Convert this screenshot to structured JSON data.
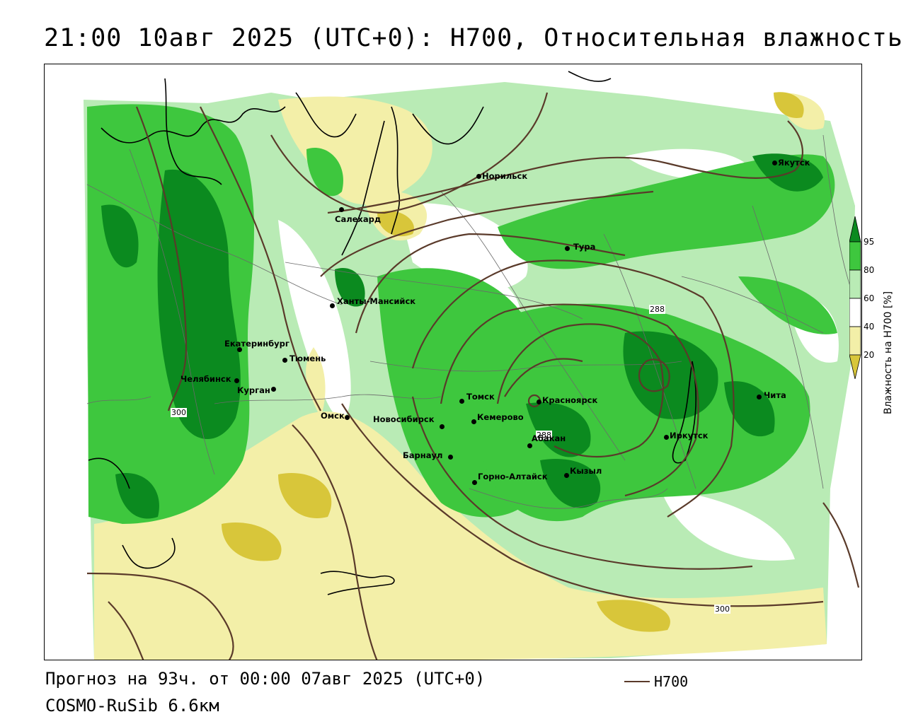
{
  "title": "21:00 10авг 2025 (UTC+0): H700, Относительная влажность",
  "forecast_line": "Прогноз на 93ч. от 00:00 07авг 2025 (UTC+0)",
  "model_line": "COSMO-RuSib 6.6км",
  "contour_legend": {
    "label": "H700",
    "color": "#5a3a2a"
  },
  "colorbar": {
    "title": "Влажность на H700 [%]",
    "ticks": [
      "95",
      "80",
      "60",
      "40",
      "20"
    ],
    "colors": {
      "c95": "#0b8a1f",
      "c80": "#3ec73e",
      "c60": "#b9ebb5",
      "c40": "#ffffff",
      "c20": "#f3efa8",
      "c0": "#d8c63a"
    }
  },
  "isoline_labels": [
    "288",
    "288",
    "300",
    "300"
  ],
  "cities": [
    {
      "name": "Норильск"
    },
    {
      "name": "Якутск"
    },
    {
      "name": "Салехард"
    },
    {
      "name": "Тура"
    },
    {
      "name": "Ханты-Мансийск"
    },
    {
      "name": "Екатеринбург"
    },
    {
      "name": "Тюмень"
    },
    {
      "name": "Челябинск"
    },
    {
      "name": "Курган"
    },
    {
      "name": "Омск"
    },
    {
      "name": "Новосибирск"
    },
    {
      "name": "Томск"
    },
    {
      "name": "Кемерово"
    },
    {
      "name": "Красноярск"
    },
    {
      "name": "Абакан"
    },
    {
      "name": "Барнаул"
    },
    {
      "name": "Горно-Алтайск"
    },
    {
      "name": "Кызыл"
    },
    {
      "name": "Иркутск"
    },
    {
      "name": "Чита"
    }
  ]
}
